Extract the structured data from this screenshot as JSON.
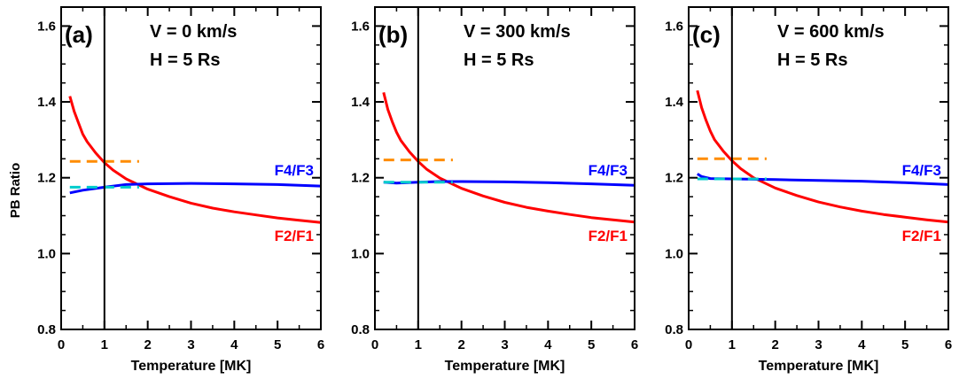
{
  "figure": {
    "ylabel": "PB Ratio"
  },
  "chart_data": [
    {
      "type": "line",
      "panel_label": "(a)",
      "annotations": [
        "V = 0 km/s",
        "H = 5 Rs"
      ],
      "xlabel": "Temperature [MK]",
      "ylabel": "PB Ratio",
      "xlim": [
        0,
        6
      ],
      "ylim": [
        0.8,
        1.65
      ],
      "xticks": [
        "0",
        "1",
        "2",
        "3",
        "4",
        "5",
        "6"
      ],
      "yticks": [
        "0.8",
        "1.0",
        "1.2",
        "1.4",
        "1.6"
      ],
      "vline_x": 1.0,
      "series": [
        {
          "name": "F2/F1",
          "color": "#ff0000",
          "x": [
            0.2,
            0.3,
            0.4,
            0.5,
            0.6,
            0.8,
            1.0,
            1.2,
            1.5,
            2.0,
            2.5,
            3.0,
            3.5,
            4.0,
            4.5,
            5.0,
            5.5,
            6.0
          ],
          "y": [
            1.415,
            1.375,
            1.345,
            1.315,
            1.295,
            1.265,
            1.24,
            1.22,
            1.197,
            1.17,
            1.15,
            1.133,
            1.12,
            1.11,
            1.102,
            1.094,
            1.088,
            1.082
          ]
        },
        {
          "name": "F4/F3",
          "color": "#0000ff",
          "x": [
            0.2,
            0.5,
            1.0,
            1.5,
            2.0,
            3.0,
            4.0,
            5.0,
            6.0
          ],
          "y": [
            1.16,
            1.167,
            1.175,
            1.182,
            1.184,
            1.185,
            1.184,
            1.182,
            1.178
          ]
        },
        {
          "name": "",
          "color": "#ff8c00",
          "style": "dashed",
          "x": [
            0.2,
            1.8
          ],
          "y": [
            1.243,
            1.243
          ]
        },
        {
          "name": "",
          "color": "#00cccc",
          "style": "dashed",
          "x": [
            0.2,
            1.8
          ],
          "y": [
            1.175,
            1.175
          ]
        }
      ]
    },
    {
      "type": "line",
      "panel_label": "(b)",
      "annotations": [
        "V = 300 km/s",
        "H = 5 Rs"
      ],
      "xlabel": "Temperature [MK]",
      "ylabel": "",
      "xlim": [
        0,
        6
      ],
      "ylim": [
        0.8,
        1.65
      ],
      "xticks": [
        "0",
        "1",
        "2",
        "3",
        "4",
        "5",
        "6"
      ],
      "yticks": [
        "0.8",
        "1.0",
        "1.2",
        "1.4",
        "1.6"
      ],
      "vline_x": 1.0,
      "series": [
        {
          "name": "F2/F1",
          "color": "#ff0000",
          "x": [
            0.2,
            0.3,
            0.4,
            0.5,
            0.6,
            0.8,
            1.0,
            1.2,
            1.5,
            2.0,
            2.5,
            3.0,
            3.5,
            4.0,
            4.5,
            5.0,
            5.5,
            6.0
          ],
          "y": [
            1.425,
            1.38,
            1.348,
            1.32,
            1.298,
            1.268,
            1.243,
            1.222,
            1.199,
            1.172,
            1.152,
            1.135,
            1.122,
            1.112,
            1.103,
            1.095,
            1.089,
            1.083
          ]
        },
        {
          "name": "F4/F3",
          "color": "#0000ff",
          "x": [
            0.2,
            0.5,
            1.0,
            1.5,
            2.0,
            3.0,
            4.0,
            5.0,
            6.0
          ],
          "y": [
            1.188,
            1.186,
            1.188,
            1.19,
            1.19,
            1.189,
            1.187,
            1.184,
            1.18
          ]
        },
        {
          "name": "",
          "color": "#ff8c00",
          "style": "dashed",
          "x": [
            0.2,
            1.8
          ],
          "y": [
            1.247,
            1.247
          ]
        },
        {
          "name": "",
          "color": "#00cccc",
          "style": "dashed",
          "x": [
            0.2,
            1.8
          ],
          "y": [
            1.188,
            1.188
          ]
        }
      ]
    },
    {
      "type": "line",
      "panel_label": "(c)",
      "annotations": [
        "V = 600 km/s",
        "H = 5 Rs"
      ],
      "xlabel": "Temperature [MK]",
      "ylabel": "",
      "xlim": [
        0,
        6
      ],
      "ylim": [
        0.8,
        1.65
      ],
      "xticks": [
        "0",
        "1",
        "2",
        "3",
        "4",
        "5",
        "6"
      ],
      "yticks": [
        "0.8",
        "1.0",
        "1.2",
        "1.4",
        "1.6"
      ],
      "vline_x": 1.0,
      "series": [
        {
          "name": "F2/F1",
          "color": "#ff0000",
          "x": [
            0.2,
            0.3,
            0.4,
            0.5,
            0.6,
            0.8,
            1.0,
            1.2,
            1.5,
            2.0,
            2.5,
            3.0,
            3.5,
            4.0,
            4.5,
            5.0,
            5.5,
            6.0
          ],
          "y": [
            1.43,
            1.385,
            1.352,
            1.323,
            1.3,
            1.27,
            1.245,
            1.224,
            1.2,
            1.173,
            1.153,
            1.136,
            1.123,
            1.112,
            1.103,
            1.096,
            1.089,
            1.083
          ]
        },
        {
          "name": "F4/F3",
          "color": "#0000ff",
          "x": [
            0.2,
            0.3,
            0.5,
            1.0,
            1.5,
            2.0,
            3.0,
            4.0,
            5.0,
            6.0
          ],
          "y": [
            1.21,
            1.203,
            1.198,
            1.197,
            1.196,
            1.195,
            1.193,
            1.191,
            1.187,
            1.182
          ]
        },
        {
          "name": "",
          "color": "#ff8c00",
          "style": "dashed",
          "x": [
            0.2,
            1.8
          ],
          "y": [
            1.25,
            1.25
          ]
        },
        {
          "name": "",
          "color": "#00cccc",
          "style": "dashed",
          "x": [
            0.2,
            1.8
          ],
          "y": [
            1.197,
            1.197
          ]
        }
      ]
    }
  ]
}
